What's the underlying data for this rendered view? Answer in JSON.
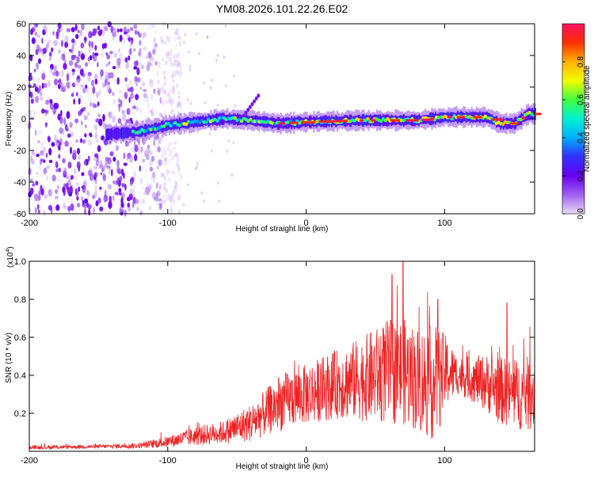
{
  "title": "YM08.2026.101.22.26.E02",
  "chart_data": [
    {
      "type": "heatmap",
      "name": "spectrogram",
      "xlabel": "Height of straight line (km)",
      "ylabel": "Frequency (Hz)",
      "xlim": [
        -200,
        165
      ],
      "ylim": [
        -60,
        60
      ],
      "xticks": [
        -200,
        -100,
        0,
        100
      ],
      "yticks": [
        -60,
        -40,
        -20,
        0,
        20,
        40,
        60
      ],
      "xtick_labels": [
        "-200",
        "-100",
        "0",
        "100"
      ],
      "ytick_labels": [
        "-60",
        "-40",
        "-20",
        "0",
        "20",
        "40",
        "60"
      ],
      "noise_region_km": [
        -200,
        -105
      ],
      "ridge": {
        "description": "high-amplitude narrow band near 0 Hz",
        "start_km": -145,
        "points": [
          [
            -145,
            -10
          ],
          [
            -120,
            -8
          ],
          [
            -100,
            -4
          ],
          [
            -80,
            -2
          ],
          [
            -60,
            0
          ],
          [
            -40,
            -1
          ],
          [
            -20,
            -3
          ],
          [
            0,
            -2
          ],
          [
            40,
            -1
          ],
          [
            80,
            -1
          ],
          [
            100,
            1
          ],
          [
            130,
            1
          ],
          [
            140,
            -3
          ],
          [
            150,
            -3
          ],
          [
            160,
            3
          ]
        ]
      },
      "colorbar": {
        "label": "Normalized spectral amplitude",
        "range": [
          0,
          1
        ],
        "ticks": [
          0.0,
          0.2,
          0.4,
          0.6,
          0.8
        ],
        "tick_labels": [
          "0.0",
          "0.2",
          "0.4",
          "0.6",
          "0.8"
        ],
        "colors": [
          "#e8dcf7",
          "#a060f0",
          "#6a00f0",
          "#3030ff",
          "#00b0ff",
          "#00f0d0",
          "#40ff40",
          "#f0ff00",
          "#ffb000",
          "#ff3000",
          "#ff1060"
        ]
      }
    },
    {
      "type": "line",
      "name": "snr",
      "xlabel": "Height of straight line (km)",
      "ylabel": "SNR (10 * v/v)",
      "yscale_label": "(x10",
      "yscale_exp": "4",
      "xlim": [
        -200,
        165
      ],
      "ylim": [
        0,
        1.0
      ],
      "xticks": [
        -200,
        -100,
        0,
        100
      ],
      "yticks": [
        0.2,
        0.4,
        0.6,
        0.8,
        1.0
      ],
      "xtick_labels": [
        "-200",
        "-100",
        "0",
        "100"
      ],
      "ytick_labels": [
        "0.2",
        "0.4",
        "0.6",
        "0.8",
        "1.0"
      ],
      "color": "#ee2222",
      "envelope": {
        "x": [
          -200,
          -150,
          -120,
          -100,
          -80,
          -60,
          -40,
          -30,
          -20,
          -10,
          0,
          20,
          40,
          50,
          60,
          70,
          80,
          90,
          95,
          100,
          110,
          120,
          130,
          140,
          150,
          160,
          165
        ],
        "mean": [
          0.02,
          0.025,
          0.03,
          0.05,
          0.08,
          0.1,
          0.15,
          0.2,
          0.25,
          0.28,
          0.3,
          0.35,
          0.38,
          0.4,
          0.42,
          0.42,
          0.38,
          0.36,
          0.36,
          0.42,
          0.4,
          0.38,
          0.36,
          0.32,
          0.3,
          0.3,
          0.32
        ],
        "spread": [
          0.01,
          0.01,
          0.015,
          0.03,
          0.05,
          0.06,
          0.1,
          0.12,
          0.15,
          0.15,
          0.16,
          0.18,
          0.22,
          0.25,
          0.28,
          0.28,
          0.28,
          0.3,
          0.3,
          0.2,
          0.1,
          0.12,
          0.15,
          0.18,
          0.18,
          0.2,
          0.2
        ]
      },
      "peaks": [
        [
          62,
          0.93
        ],
        [
          70,
          1.0
        ],
        [
          95,
          0.8
        ],
        [
          145,
          0.78
        ]
      ]
    }
  ]
}
